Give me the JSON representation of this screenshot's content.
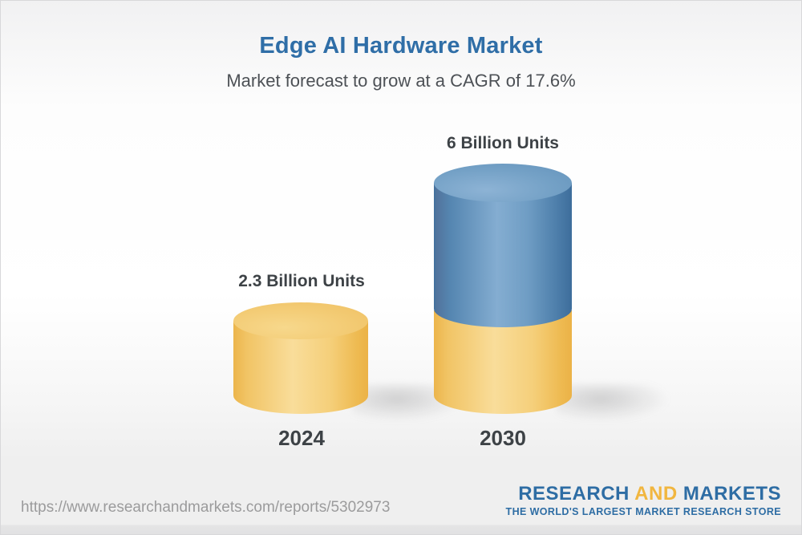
{
  "header": {
    "title": "Edge AI Hardware Market",
    "subtitle": "Market forecast to grow at a CAGR of 17.6%"
  },
  "chart_data": {
    "type": "bar",
    "variant": "3d-cylinder",
    "title": "Edge AI Hardware Market",
    "subtitle": "Market forecast to grow at a CAGR of 17.6%",
    "cagr_percent": 17.6,
    "unit": "Billion Units",
    "categories": [
      "2024",
      "2030"
    ],
    "values": [
      2.3,
      6
    ],
    "bar_labels": [
      "2.3 Billion Units",
      "6 Billion Units"
    ],
    "bar_colors": [
      {
        "category": "2024",
        "segments": [
          "yellow"
        ]
      },
      {
        "category": "2030",
        "segments": [
          "yellow-base",
          "blue-top"
        ]
      }
    ],
    "axes": "none",
    "gridlines": false,
    "legend": "none"
  },
  "footer": {
    "url": "https://www.researchandmarkets.com/reports/5302973",
    "logo": {
      "research": "RESEARCH",
      "and": "AND",
      "markets": "MARKETS",
      "tagline": "THE WORLD'S LARGEST MARKET RESEARCH STORE"
    }
  },
  "colors": {
    "title_blue": "#2f6ea7",
    "subtitle_gray": "#4d5156",
    "label_dark": "#3d4246",
    "bar_yellow": "#f2c76c",
    "bar_blue": "#5e8db8",
    "url_gray": "#9b9b9c",
    "logo_blue": "#2e6da4",
    "logo_gold": "#f1b63f",
    "background_top": "#f1f1f2",
    "background_bottom": "#efefef"
  }
}
